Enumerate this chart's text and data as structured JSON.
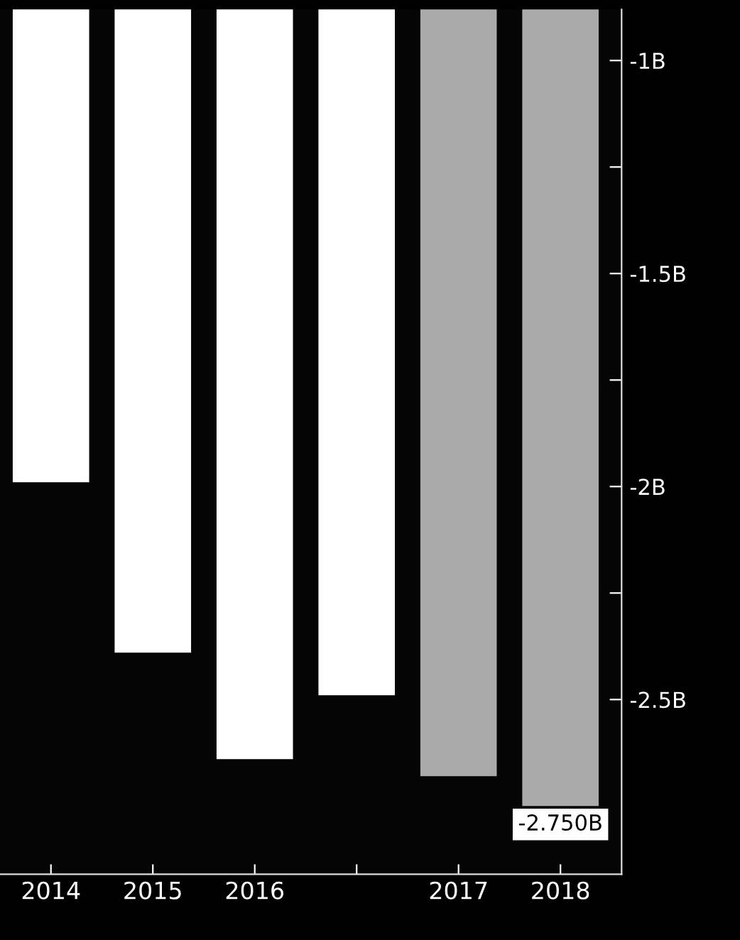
{
  "chart_data": {
    "type": "bar",
    "categories": [
      "2014",
      "2015",
      "2016",
      null,
      "2017",
      "2018"
    ],
    "values": [
      -1.99,
      -2.39,
      -2.64,
      -2.49,
      -2.68,
      -2.75
    ],
    "colors": [
      "#ffffff",
      "#ffffff",
      "#ffffff",
      "#ffffff",
      "#aaaaaa",
      "#aaaaaa"
    ],
    "value_labels": [
      null,
      null,
      null,
      null,
      null,
      "-2.750B"
    ],
    "ylim": [
      -2.91,
      -0.88
    ],
    "yticks": [
      {
        "value": -1,
        "label": "-1B"
      },
      {
        "value": -1.25,
        "label": null
      },
      {
        "value": -1.5,
        "label": "-1.5B"
      },
      {
        "value": -1.75,
        "label": null
      },
      {
        "value": -2,
        "label": "-2B"
      },
      {
        "value": -2.25,
        "label": null
      },
      {
        "value": -2.5,
        "label": "-2.5B"
      }
    ],
    "grid": false,
    "legend": false
  }
}
